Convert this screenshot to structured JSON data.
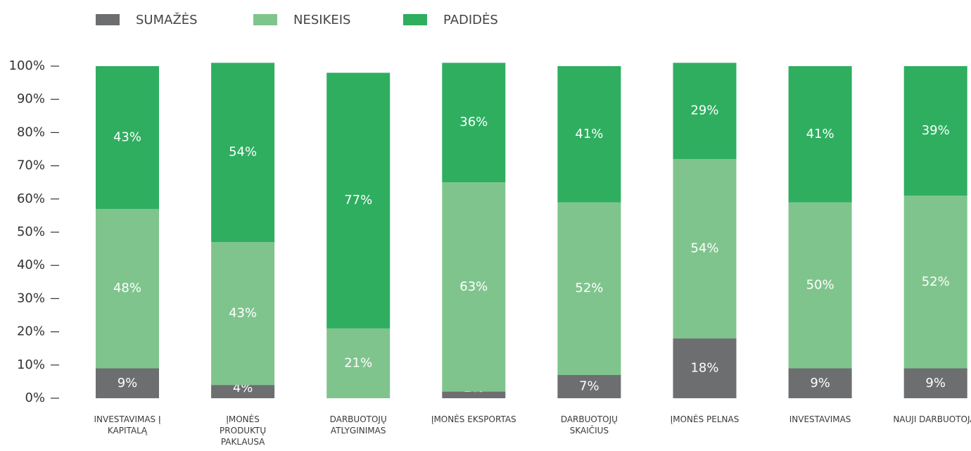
{
  "chart_data": {
    "type": "stacked_bar",
    "categories": [
      "INVESTAVIMAS Į KAPITALĄ",
      "ĮMONĖS PRODUKTŲ PAKLAUSA",
      "DARBUOTOJŲ ATLYGINIMAS",
      "ĮMONĖS EKSPORTAS",
      "DARBUOTOJŲ SKAIČIUS",
      "ĮMONĖS PELNAS",
      "INVESTAVIMAS",
      "NAUJI DARBUOTOJAI"
    ],
    "series": [
      {
        "name": "SUMAŽĖS",
        "color": "#6d6e70",
        "values": [
          9,
          4,
          null,
          2,
          7,
          18,
          9,
          9
        ],
        "value_labels": [
          "9%",
          "4%",
          null,
          "2%",
          "7%",
          "18%",
          "9%",
          "9%"
        ]
      },
      {
        "name": "NESIKEIS",
        "color": "#80c48d",
        "values": [
          48,
          43,
          21,
          63,
          52,
          54,
          50,
          52
        ],
        "value_labels": [
          "48%",
          "43%",
          "21%",
          "63%",
          "52%",
          "54%",
          "50%",
          "52%"
        ]
      },
      {
        "name": "PADIDĖS",
        "color": "#2fae60",
        "values": [
          43,
          54,
          77,
          36,
          41,
          29,
          41,
          39
        ],
        "value_labels": [
          "43%",
          "54%",
          "77%",
          "36%",
          "41%",
          "29%",
          "41%",
          "39%"
        ]
      }
    ],
    "ylim": [
      0,
      100
    ],
    "yticks": [
      {
        "value": 0,
        "label": "0%"
      },
      {
        "value": 10,
        "label": "10%"
      },
      {
        "value": 20,
        "label": "20%"
      },
      {
        "value": 30,
        "label": "30%"
      },
      {
        "value": 40,
        "label": "40%"
      },
      {
        "value": 50,
        "label": "50%"
      },
      {
        "value": 60,
        "label": "60%"
      },
      {
        "value": 70,
        "label": "70%"
      },
      {
        "value": 80,
        "label": "80%"
      },
      {
        "value": 90,
        "label": "90%"
      },
      {
        "value": 100,
        "label": "100%"
      }
    ]
  }
}
